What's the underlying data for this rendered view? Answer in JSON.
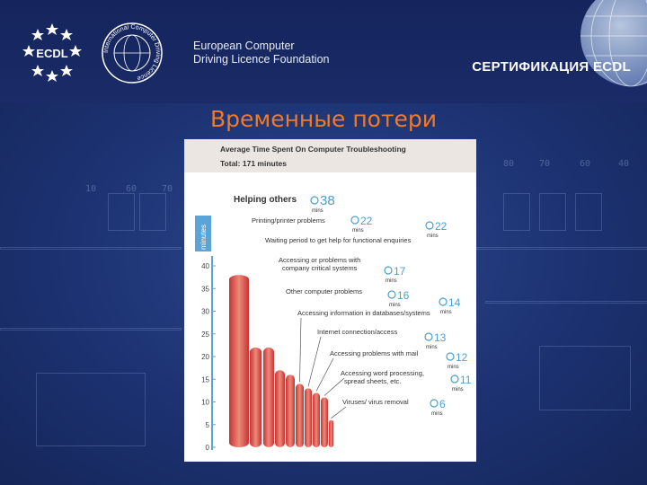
{
  "header": {
    "ecdl_logo_text": "ECDL",
    "icdl_logo_text": "International Computer Driving Licence",
    "org_name_line1": "European Computer",
    "org_name_line2": "Driving Licence Foundation",
    "cert_title": "СЕРТИФИКАЦИЯ ECDL"
  },
  "slide": {
    "title": "Временные потери",
    "circuit_labels": [
      "10",
      "60",
      "70",
      "80",
      "70",
      "60",
      "40"
    ]
  },
  "colors": {
    "title_orange": "#f07a2a",
    "bar_red": "#d94545",
    "badge_blue": "#4a9fd0",
    "axis_blue": "#5aa5d6",
    "header_band": "#ece6e2"
  },
  "chart_data": {
    "type": "bar",
    "title": "Average Time Spent On Computer Troubleshooting",
    "subtitle": "Total: 171 minutes",
    "ylabel": "minutes",
    "ylim": [
      0,
      40
    ],
    "yticks": [
      0,
      5,
      10,
      15,
      20,
      25,
      30,
      35,
      40
    ],
    "unit_label": "mins",
    "grid": false,
    "categories": [
      "Helping others",
      "Printing/printer problems",
      "Waiting period to get help for functional enquiries",
      "Accessing or problems with company critical systems",
      "Other computer problems",
      "Accessing information in databases/systems",
      "Internet connection/access",
      "Accessing problems with mail",
      "Accessing word processing, spread sheets, etc.",
      "Viruses/ virus removal"
    ],
    "values": [
      38,
      22,
      22,
      17,
      16,
      14,
      13,
      12,
      11,
      6
    ]
  }
}
